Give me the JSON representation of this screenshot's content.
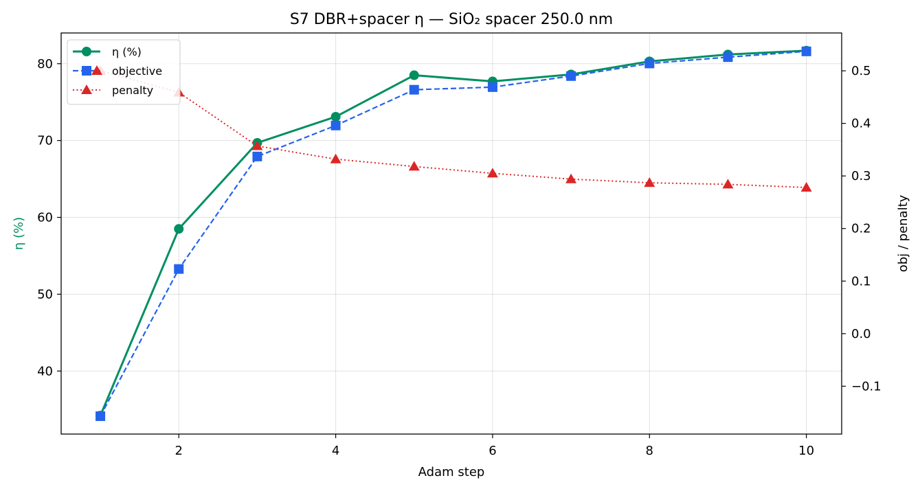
{
  "chart_data": {
    "type": "line",
    "title": "S7 DBR+spacer η — SiO₂ spacer 250.0 nm",
    "xlabel": "Adam step",
    "ylabel_left": "η (%)",
    "ylabel_right": "obj / penalty",
    "x": [
      1,
      2,
      3,
      4,
      5,
      6,
      7,
      8,
      9,
      10
    ],
    "xlim": [
      0.5,
      10.45
    ],
    "ylim_left": [
      31.8,
      84.0
    ],
    "ylim_right": [
      -0.191,
      0.572
    ],
    "xticks": [
      2,
      4,
      6,
      8,
      10
    ],
    "yticks_left": [
      40,
      50,
      60,
      70,
      80
    ],
    "yticks_right": [
      -0.1,
      0.0,
      0.1,
      0.2,
      0.3,
      0.4,
      0.5
    ],
    "ytick_labels_right": [
      "−0.1",
      "0.0",
      "0.1",
      "0.2",
      "0.3",
      "0.4",
      "0.5"
    ],
    "grid": true,
    "legend_position": "upper-left",
    "series": [
      {
        "name": "η (%)",
        "axis": "left",
        "style": "solid",
        "marker": "circle",
        "color": "#008f62",
        "values": [
          34.2,
          58.5,
          69.7,
          73.1,
          78.5,
          77.7,
          78.6,
          80.3,
          81.2,
          81.7
        ]
      },
      {
        "name": "objective",
        "axis": "right",
        "style": "dashed",
        "marker": "square",
        "color": "#2563eb",
        "values": [
          -0.157,
          0.123,
          0.337,
          0.396,
          0.464,
          0.469,
          0.49,
          0.514,
          0.526,
          0.537
        ]
      },
      {
        "name": "penalty",
        "axis": "right",
        "style": "dotted",
        "marker": "triangle",
        "color": "#dc2626",
        "values": [
          0.5,
          0.459,
          0.357,
          0.332,
          0.318,
          0.305,
          0.294,
          0.287,
          0.284,
          0.278
        ]
      }
    ]
  }
}
